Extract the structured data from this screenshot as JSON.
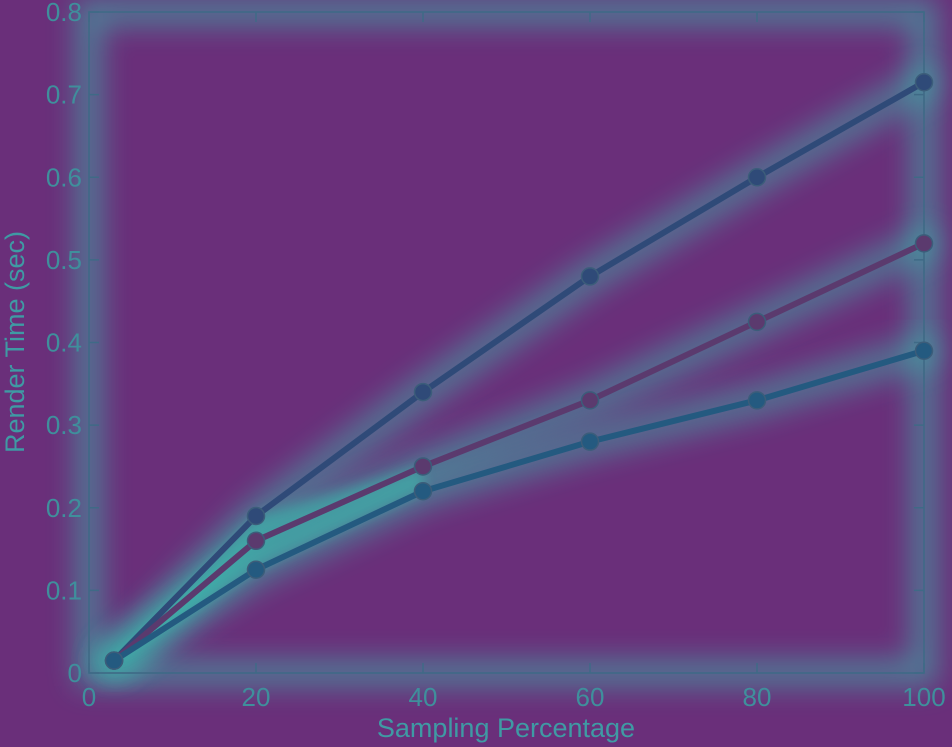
{
  "chart_data": {
    "type": "line",
    "title": "",
    "xlabel": "Sampling Percentage",
    "ylabel": "Render Time (sec)",
    "xlim": [
      0,
      100
    ],
    "ylim": [
      0,
      0.8
    ],
    "xticks": [
      0,
      20,
      40,
      60,
      80,
      100
    ],
    "yticks": [
      0,
      0.1,
      0.2,
      0.3,
      0.4,
      0.5,
      0.6,
      0.7,
      0.8
    ],
    "grid": false,
    "legend": "none",
    "series": [
      {
        "color": "#2f4a78",
        "x": [
          3,
          20,
          40,
          60,
          80,
          100
        ],
        "y": [
          0.015,
          0.19,
          0.34,
          0.48,
          0.6,
          0.715
        ]
      },
      {
        "color": "#5b3a6e",
        "x": [
          3,
          20,
          40,
          60,
          80,
          100
        ],
        "y": [
          0.015,
          0.16,
          0.25,
          0.33,
          0.425,
          0.52
        ]
      },
      {
        "color": "#245a80",
        "x": [
          3,
          20,
          40,
          60,
          80,
          100
        ],
        "y": [
          0.015,
          0.125,
          0.22,
          0.28,
          0.33,
          0.39
        ]
      }
    ]
  },
  "colors": {
    "background": "#6a2f7a",
    "axis": "#3f6a86",
    "glow": "#39c2b0"
  }
}
